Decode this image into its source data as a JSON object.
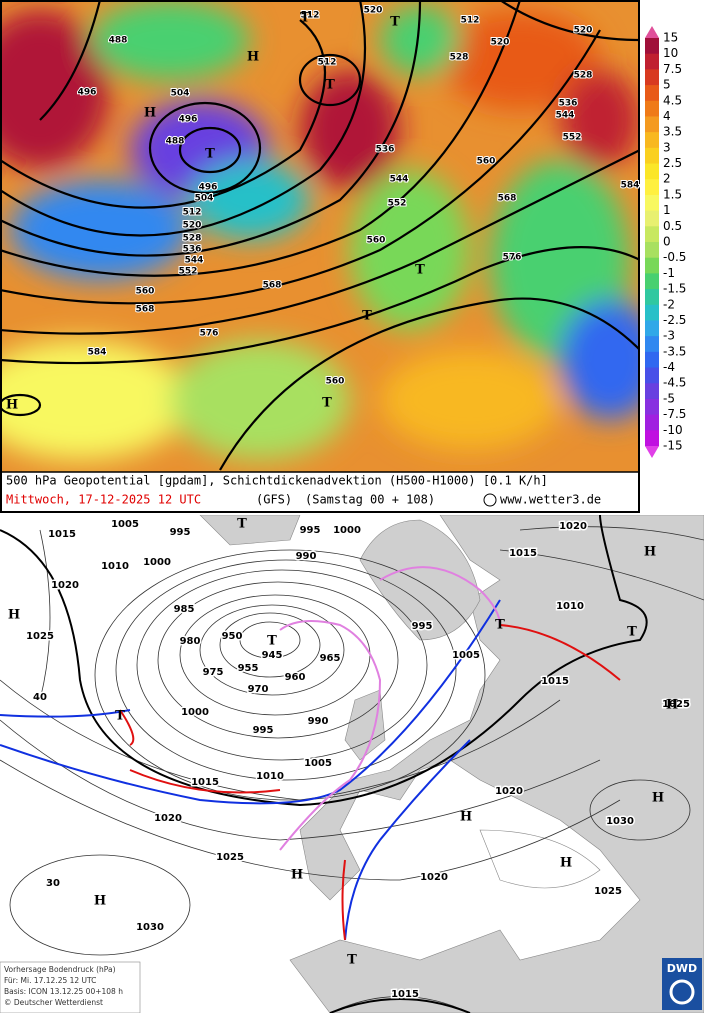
{
  "top_panel": {
    "caption": "500 hPa Geopotential [gpdam], Schichtdickenadvektion (H500-H1000) [0.1 K/h]",
    "date": "Mittwoch, 17-12-2025  12 UTC",
    "model": "(GFS)",
    "run": "(Samstag 00 + 108)",
    "copyright": "www.wetter3.de",
    "colorbar": [
      "15",
      "10",
      "7.5",
      "5",
      "4.5",
      "4",
      "3.5",
      "3",
      "2.5",
      "2",
      "1.5",
      "1",
      "0.5",
      "0",
      "-0.5",
      "-1",
      "-1.5",
      "-2",
      "-2.5",
      "-3",
      "-3.5",
      "-4",
      "-4.5",
      "-5",
      "-7.5",
      "-10",
      "-15"
    ],
    "colorbar_colors": [
      "#e0509a",
      "#a0103a",
      "#c02030",
      "#d83a20",
      "#e85a18",
      "#ef7a18",
      "#f49a20",
      "#f8b820",
      "#fad020",
      "#fbe628",
      "#fff040",
      "#f8f860",
      "#e8f070",
      "#c8e860",
      "#a8e060",
      "#78d858",
      "#48d070",
      "#30c8a0",
      "#28c0c8",
      "#30a8e8",
      "#3088f0",
      "#3068f0",
      "#4850e8",
      "#6840e0",
      "#8830e0",
      "#a020e0",
      "#c010e0",
      "#e040e8"
    ],
    "contour_labels": [
      "488",
      "496",
      "504",
      "496",
      "488",
      "496",
      "504",
      "512",
      "520",
      "528",
      "536",
      "544",
      "552",
      "560",
      "568",
      "576",
      "584",
      "568",
      "560",
      "552",
      "544",
      "536",
      "512",
      "520",
      "512",
      "520",
      "528",
      "536",
      "544",
      "552",
      "560",
      "568",
      "576",
      "560",
      "520",
      "528",
      "584",
      "512"
    ],
    "centers": [
      "H",
      "H",
      "T",
      "T",
      "T",
      "T",
      "T",
      "T",
      "T",
      "H"
    ]
  },
  "bottom_panel": {
    "isobar_labels": [
      "1005",
      "995",
      "1000",
      "995",
      "990",
      "1015",
      "1010",
      "1000",
      "1020",
      "1025",
      "985",
      "980",
      "950",
      "945",
      "975",
      "955",
      "965",
      "960",
      "970",
      "1000",
      "990",
      "995",
      "1005",
      "1010",
      "1015",
      "1020",
      "1025",
      "1030",
      "995",
      "1005",
      "1010",
      "1015",
      "1020",
      "1015",
      "1025",
      "1020",
      "1030",
      "1025",
      "1020",
      "1015",
      "40",
      "30"
    ],
    "centers": [
      "H",
      "H",
      "H",
      "H",
      "H",
      "H",
      "H",
      "H",
      "T",
      "T",
      "T",
      "T",
      "T",
      "T"
    ],
    "info": [
      "Vorhersage Bodendruck (hPa)",
      "Für:  Mi. 17.12.25  12 UTC",
      "Basis: ICON  13.12.25 00+108 h",
      "© Deutscher Wetterdienst"
    ],
    "logo": "DWD"
  }
}
